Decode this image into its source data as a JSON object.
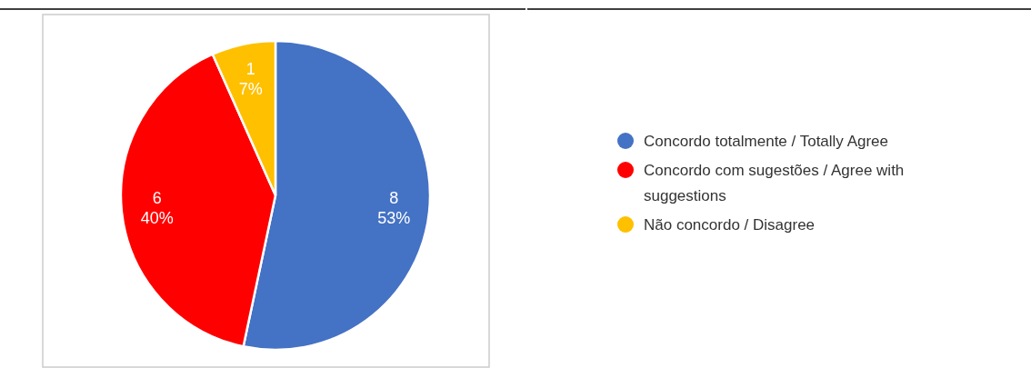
{
  "chart_data": {
    "type": "pie",
    "categories": [
      "Concordo totalmente / Totally Agree",
      "Concordo com sugestões / Agree with suggestions",
      "Não concordo / Disagree"
    ],
    "values": [
      8,
      6,
      1
    ],
    "colors": [
      "#4472c4",
      "#ff0000",
      "#ffc000"
    ],
    "value_labels": [
      "8\n53%",
      "6\n40%",
      "1\n7%"
    ],
    "legend": "right"
  }
}
